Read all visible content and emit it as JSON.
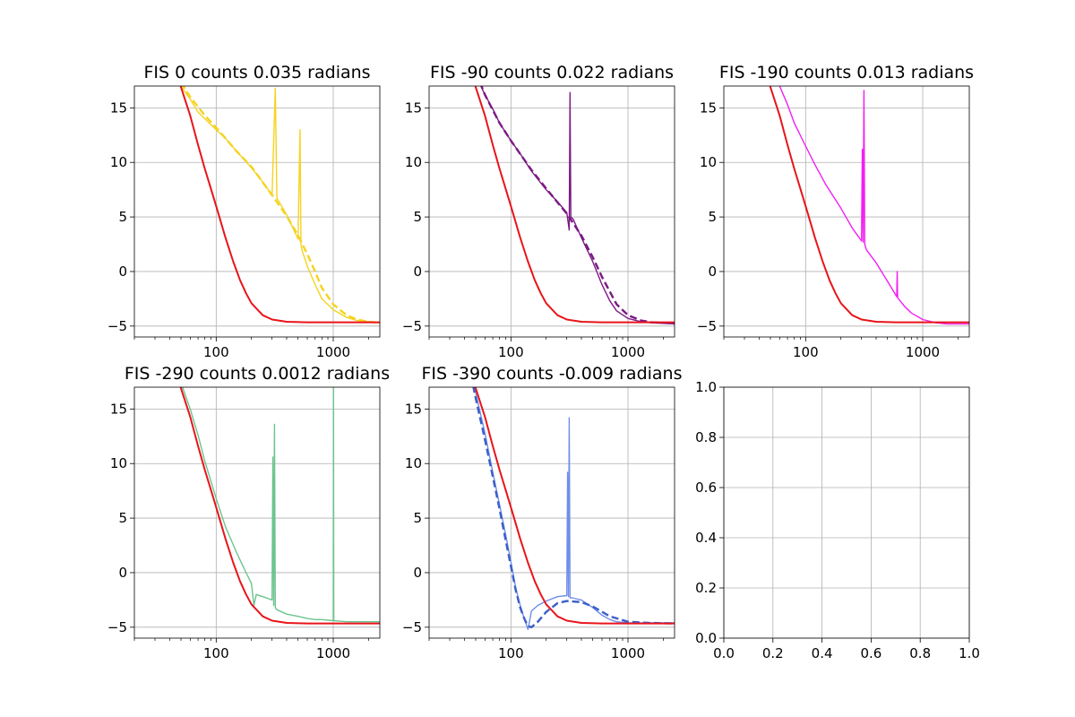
{
  "chart_data": [
    {
      "type": "line",
      "title": "FIS 0 counts 0.035 radians",
      "xscale": "log",
      "xlim": [
        20,
        2500
      ],
      "ylim": [
        -6,
        17
      ],
      "xticks": [
        100,
        1000
      ],
      "xtick_labels": [
        "100",
        "1000"
      ],
      "yticks": [
        -5,
        0,
        5,
        10,
        15
      ],
      "ytick_labels": [
        "−5",
        "0",
        "5",
        "10",
        "15"
      ],
      "grid": true,
      "series": [
        {
          "role": "measured",
          "style": "solid",
          "color": "#f5d31f",
          "x": [
            40,
            50,
            60,
            70,
            80,
            100,
            120,
            150,
            200,
            250,
            300,
            320,
            330,
            340,
            400,
            500,
            520,
            530,
            540,
            600,
            700,
            800,
            1000,
            1300,
            1600,
            2000,
            2500
          ],
          "y": [
            19,
            17,
            15.8,
            14.6,
            14.0,
            13.0,
            12.2,
            11.0,
            9.5,
            8.2,
            7.0,
            16.8,
            6.7,
            6.5,
            5.2,
            3.0,
            13.0,
            2.5,
            2.0,
            0.5,
            -1.2,
            -2.5,
            -3.5,
            -4.2,
            -4.5,
            -4.6,
            -4.7
          ]
        },
        {
          "role": "fit",
          "style": "dashed",
          "color": "#f5d31f",
          "x": [
            40,
            60,
            80,
            100,
            150,
            200,
            300,
            400,
            500,
            600,
            700,
            800,
            1000,
            1300,
            1600,
            2000,
            2500
          ],
          "y": [
            19,
            16.0,
            14.3,
            13.2,
            11.0,
            9.6,
            7.0,
            5.1,
            3.3,
            1.6,
            0.0,
            -1.5,
            -3.0,
            -4.0,
            -4.4,
            -4.6,
            -4.7
          ]
        },
        {
          "role": "reference",
          "style": "solid",
          "color": "#e8141a",
          "x": [
            40,
            50,
            60,
            70,
            80,
            90,
            100,
            110,
            120,
            140,
            160,
            180,
            200,
            250,
            300,
            400,
            600,
            1000,
            2500
          ],
          "y": [
            21,
            16.9,
            14.3,
            11.6,
            9.4,
            7.6,
            6.0,
            4.5,
            3.1,
            0.9,
            -0.8,
            -2.0,
            -2.9,
            -4.0,
            -4.4,
            -4.6,
            -4.65,
            -4.65,
            -4.65
          ]
        }
      ]
    },
    {
      "type": "line",
      "title": "FIS -90 counts 0.022 radians",
      "xscale": "log",
      "xlim": [
        20,
        2500
      ],
      "ylim": [
        -6,
        17
      ],
      "xticks": [
        100,
        1000
      ],
      "xtick_labels": [
        "100",
        "1000"
      ],
      "yticks": [
        -5,
        0,
        5,
        10,
        15
      ],
      "ytick_labels": [
        "−5",
        "0",
        "5",
        "10",
        "15"
      ],
      "grid": true,
      "series": [
        {
          "role": "measured",
          "style": "solid",
          "color": "#7b1a84",
          "x": [
            40,
            50,
            60,
            70,
            80,
            100,
            120,
            150,
            200,
            250,
            300,
            315,
            320,
            325,
            340,
            400,
            500,
            600,
            700,
            800,
            1000,
            1300,
            1600,
            2000,
            2500
          ],
          "y": [
            21,
            18,
            16.2,
            14.9,
            13.6,
            12.0,
            10.8,
            9.2,
            7.5,
            6.4,
            5.4,
            3.8,
            16.4,
            5.0,
            4.8,
            3.1,
            0.9,
            -1.2,
            -2.7,
            -3.6,
            -4.3,
            -4.6,
            -4.7,
            -4.75,
            -4.8
          ]
        },
        {
          "role": "fit",
          "style": "dashed",
          "color": "#7b1a84",
          "x": [
            40,
            60,
            80,
            100,
            150,
            200,
            300,
            400,
            500,
            600,
            800,
            1000,
            1300,
            1600,
            2000,
            2500
          ],
          "y": [
            21,
            16.2,
            13.6,
            12.0,
            9.3,
            7.6,
            5.3,
            3.3,
            1.3,
            -0.5,
            -3.0,
            -4.0,
            -4.5,
            -4.65,
            -4.7,
            -4.75
          ]
        },
        {
          "role": "reference",
          "style": "solid",
          "color": "#e8141a",
          "x": [
            40,
            50,
            60,
            70,
            80,
            90,
            100,
            110,
            120,
            140,
            160,
            180,
            200,
            250,
            300,
            400,
            600,
            1000,
            2500
          ],
          "y": [
            21,
            16.9,
            14.3,
            11.6,
            9.4,
            7.6,
            6.0,
            4.5,
            3.1,
            0.9,
            -0.8,
            -2.0,
            -2.9,
            -4.0,
            -4.4,
            -4.6,
            -4.65,
            -4.65,
            -4.65
          ]
        }
      ]
    },
    {
      "type": "line",
      "title": "FIS -190 counts 0.013 radians",
      "xscale": "log",
      "xlim": [
        20,
        2500
      ],
      "ylim": [
        -6,
        17
      ],
      "xticks": [
        100,
        1000
      ],
      "xtick_labels": [
        "100",
        "1000"
      ],
      "yticks": [
        -5,
        0,
        5,
        10,
        15
      ],
      "ytick_labels": [
        "−5",
        "0",
        "5",
        "10",
        "15"
      ],
      "grid": true,
      "series": [
        {
          "role": "measured",
          "style": "solid",
          "color": "#f21ff2",
          "x": [
            40,
            50,
            60,
            70,
            80,
            100,
            120,
            150,
            200,
            250,
            300,
            305,
            310,
            315,
            320,
            330,
            400,
            500,
            600,
            605,
            610,
            700,
            800,
            1000,
            1300,
            1600,
            2000,
            2500
          ],
          "y": [
            21,
            19,
            17,
            15.3,
            13.6,
            11.5,
            9.8,
            7.9,
            5.8,
            4.0,
            2.8,
            11.2,
            2.7,
            16.6,
            2.5,
            2.0,
            0.8,
            -0.9,
            -2.3,
            0.0,
            -2.4,
            -3.2,
            -3.8,
            -4.4,
            -4.7,
            -4.8,
            -4.8,
            -4.8
          ]
        },
        {
          "role": "reference",
          "style": "solid",
          "color": "#e8141a",
          "x": [
            40,
            50,
            60,
            70,
            80,
            90,
            100,
            110,
            120,
            140,
            160,
            180,
            200,
            250,
            300,
            400,
            600,
            1000,
            2500
          ],
          "y": [
            21,
            16.9,
            14.3,
            11.6,
            9.4,
            7.6,
            6.0,
            4.5,
            3.1,
            0.9,
            -0.8,
            -2.0,
            -2.9,
            -4.0,
            -4.4,
            -4.6,
            -4.65,
            -4.65,
            -4.65
          ]
        }
      ]
    },
    {
      "type": "line",
      "title": "FIS -290 counts 0.0012 radians",
      "xscale": "log",
      "xlim": [
        20,
        2500
      ],
      "ylim": [
        -6,
        17
      ],
      "xticks": [
        100,
        1000
      ],
      "xtick_labels": [
        "100",
        "1000"
      ],
      "yticks": [
        -5,
        0,
        5,
        10,
        15
      ],
      "ytick_labels": [
        "−5",
        "0",
        "5",
        "10",
        "15"
      ],
      "grid": true,
      "series": [
        {
          "role": "measured",
          "style": "solid",
          "color": "#6cc48e",
          "x": [
            40,
            50,
            60,
            70,
            80,
            90,
            100,
            120,
            150,
            180,
            200,
            210,
            220,
            250,
            300,
            305,
            310,
            315,
            320,
            330,
            400,
            500,
            600,
            700,
            800,
            1000,
            1005,
            1010,
            1300,
            1600,
            2000,
            2500
          ],
          "y": [
            21,
            17.4,
            15.0,
            12.6,
            10.2,
            8.4,
            6.8,
            4.2,
            1.8,
            0.0,
            -1.0,
            -3.0,
            -2.0,
            -2.2,
            -2.5,
            10.6,
            -3.0,
            13.6,
            -3.2,
            -3.4,
            -3.8,
            -4.0,
            -4.2,
            -4.3,
            -4.3,
            -4.4,
            17.0,
            -4.4,
            -4.5,
            -4.5,
            -4.5,
            -4.5
          ]
        },
        {
          "role": "reference",
          "style": "solid",
          "color": "#e8141a",
          "x": [
            40,
            50,
            60,
            70,
            80,
            90,
            100,
            110,
            120,
            140,
            160,
            180,
            200,
            250,
            300,
            400,
            600,
            1000,
            2500
          ],
          "y": [
            21,
            16.9,
            14.3,
            11.6,
            9.4,
            7.6,
            6.0,
            4.5,
            3.1,
            0.9,
            -0.8,
            -2.0,
            -2.9,
            -4.0,
            -4.4,
            -4.6,
            -4.65,
            -4.65,
            -4.65
          ]
        }
      ]
    },
    {
      "type": "line",
      "title": "FIS -390 counts -0.009 radians",
      "xscale": "log",
      "xlim": [
        20,
        2500
      ],
      "ylim": [
        -6,
        17
      ],
      "xticks": [
        100,
        1000
      ],
      "xtick_labels": [
        "100",
        "1000"
      ],
      "yticks": [
        -5,
        0,
        5,
        10,
        15
      ],
      "ytick_labels": [
        "−5",
        "0",
        "5",
        "10",
        "15"
      ],
      "grid": true,
      "series": [
        {
          "role": "measured",
          "style": "solid",
          "color": "#6f8ee8",
          "x": [
            40,
            50,
            60,
            70,
            80,
            90,
            100,
            110,
            120,
            130,
            140,
            150,
            170,
            200,
            250,
            300,
            305,
            310,
            315,
            320,
            330,
            400,
            500,
            600,
            700,
            800,
            1000,
            1300,
            1600,
            2000,
            2500
          ],
          "y": [
            21,
            16.5,
            12.8,
            9.2,
            6.2,
            3.5,
            1.0,
            -1.4,
            -3.0,
            -4.2,
            -5.2,
            -3.5,
            -3.0,
            -2.6,
            -2.2,
            -2.1,
            9.2,
            -2.2,
            14.2,
            -2.3,
            -2.3,
            -2.5,
            -3.2,
            -3.9,
            -4.3,
            -4.5,
            -4.6,
            -4.6,
            -4.6,
            -4.6,
            -4.6
          ]
        },
        {
          "role": "fit",
          "style": "dashed",
          "color": "#3c5fc8",
          "x": [
            40,
            50,
            60,
            70,
            80,
            90,
            100,
            110,
            120,
            130,
            140,
            150,
            170,
            200,
            250,
            300,
            400,
            500,
            700,
            1000,
            1500,
            2500
          ],
          "y": [
            21,
            16.0,
            12.2,
            8.8,
            5.8,
            3.0,
            0.6,
            -1.6,
            -3.2,
            -4.2,
            -4.9,
            -5.0,
            -4.5,
            -3.6,
            -2.8,
            -2.6,
            -2.7,
            -3.1,
            -4.0,
            -4.5,
            -4.6,
            -4.65
          ]
        },
        {
          "role": "reference",
          "style": "solid",
          "color": "#e8141a",
          "x": [
            40,
            50,
            60,
            70,
            80,
            90,
            100,
            110,
            120,
            140,
            160,
            180,
            200,
            250,
            300,
            400,
            600,
            1000,
            2500
          ],
          "y": [
            21,
            16.9,
            14.3,
            11.6,
            9.4,
            7.6,
            6.0,
            4.5,
            3.1,
            0.9,
            -0.8,
            -2.0,
            -2.9,
            -4.0,
            -4.4,
            -4.6,
            -4.65,
            -4.65,
            -4.65
          ]
        }
      ]
    },
    {
      "type": "line",
      "title": "",
      "xscale": "linear",
      "xlim": [
        0,
        1
      ],
      "ylim": [
        0,
        1
      ],
      "xticks": [
        0,
        0.2,
        0.4,
        0.6,
        0.8,
        1.0
      ],
      "xtick_labels": [
        "0.0",
        "0.2",
        "0.4",
        "0.6",
        "0.8",
        "1.0"
      ],
      "yticks": [
        0,
        0.2,
        0.4,
        0.6,
        0.8,
        1.0
      ],
      "ytick_labels": [
        "0.0",
        "0.2",
        "0.4",
        "0.6",
        "0.8",
        "1.0"
      ],
      "grid": true,
      "series": []
    }
  ]
}
